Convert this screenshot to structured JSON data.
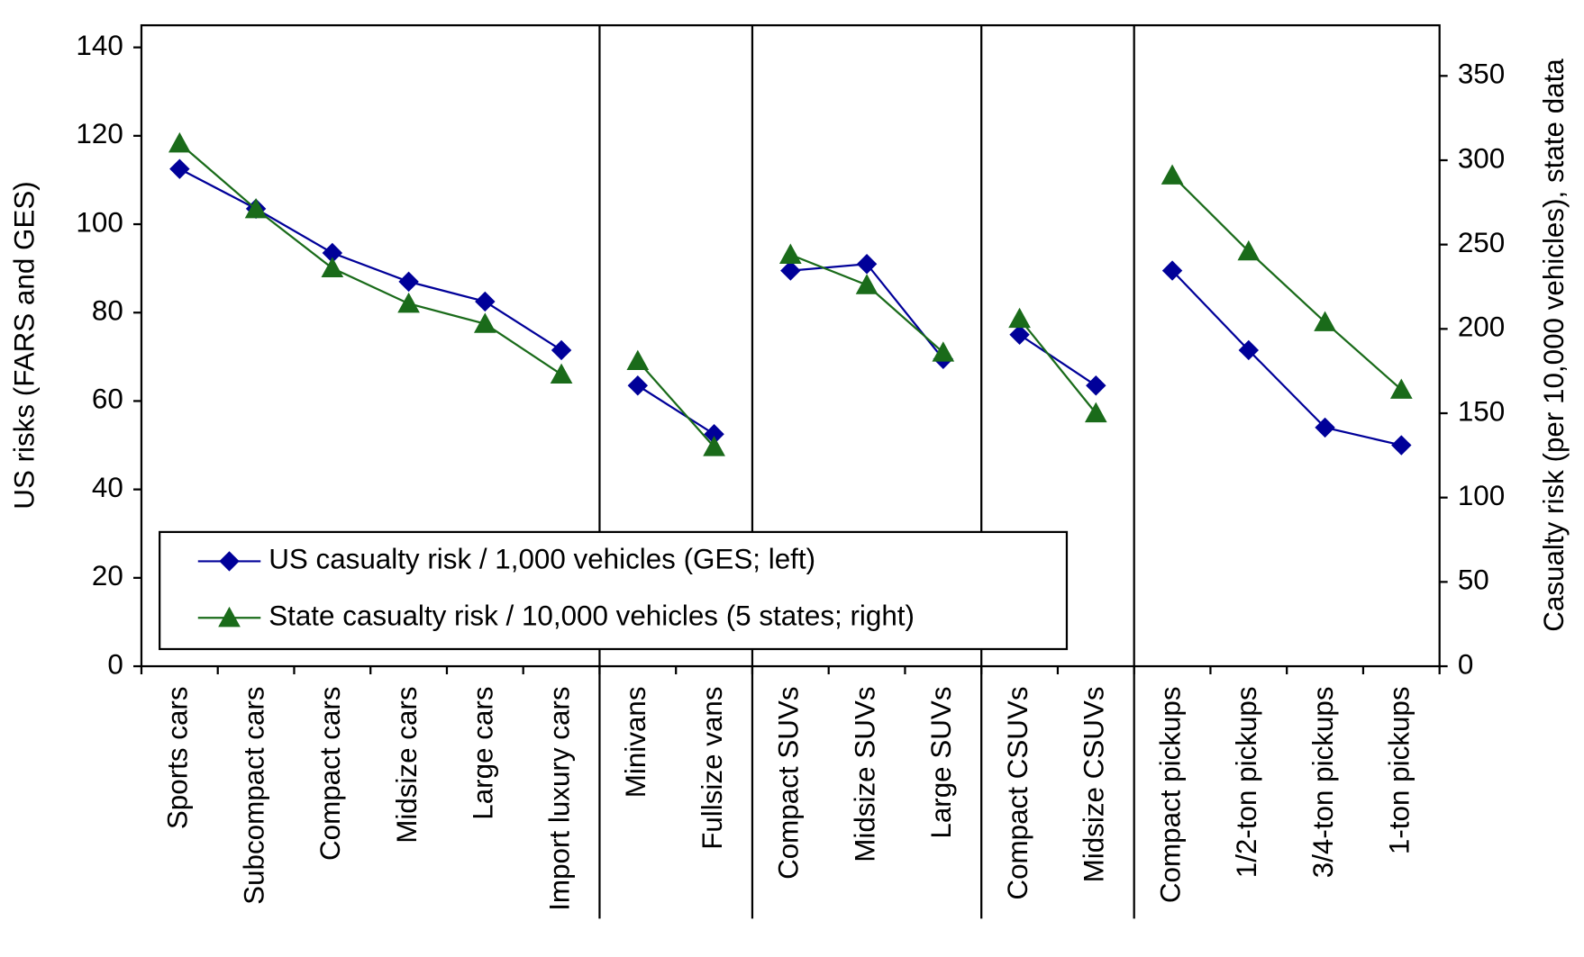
{
  "chart_data": {
    "type": "line",
    "categories": [
      "Sports cars",
      "Subcompact cars",
      "Compact cars",
      "Midsize cars",
      "Large cars",
      "Import luxury cars",
      "Minivans",
      "Fullsize vans",
      "Compact SUVs",
      "Midsize SUVs",
      "Large SUVs",
      "Compact CSUVs",
      "Midsize CSUVs",
      "Compact pickups",
      "1/2-ton pickups",
      "3/4-ton pickups",
      "1-ton pickups"
    ],
    "group_sizes": [
      6,
      2,
      3,
      2,
      4
    ],
    "y_label": "US risks (FARS and GES)",
    "y2_label": "Casualty risk (per 10,000 vehicles), state data",
    "series": [
      {
        "name": "US casualty risk / 1,000 vehicles (GES; left)",
        "color": "#000099",
        "marker": "diamond",
        "axis": "y",
        "values": [
          112.5,
          103.5,
          93.5,
          87,
          82.5,
          71.5,
          63.5,
          52.5,
          89.5,
          91,
          69.5,
          75,
          63.5,
          89.5,
          71.5,
          54,
          50
        ]
      },
      {
        "name": "State casualty risk / 10,000 vehicles (5 states; right)",
        "color": "#1a6b1a",
        "marker": "triangle",
        "axis": "y2",
        "values": [
          310,
          271,
          236,
          215,
          203,
          173,
          181,
          130,
          244,
          226,
          186,
          206,
          150,
          291,
          246,
          204,
          164
        ]
      }
    ],
    "ylim": [
      0,
      145
    ],
    "yticks": [
      0,
      20,
      40,
      60,
      80,
      100,
      120,
      140
    ],
    "y2lim": [
      0,
      380
    ],
    "y2ticks": [
      0,
      50,
      100,
      150,
      200,
      250,
      300,
      350
    ],
    "legend": "lower-left"
  }
}
